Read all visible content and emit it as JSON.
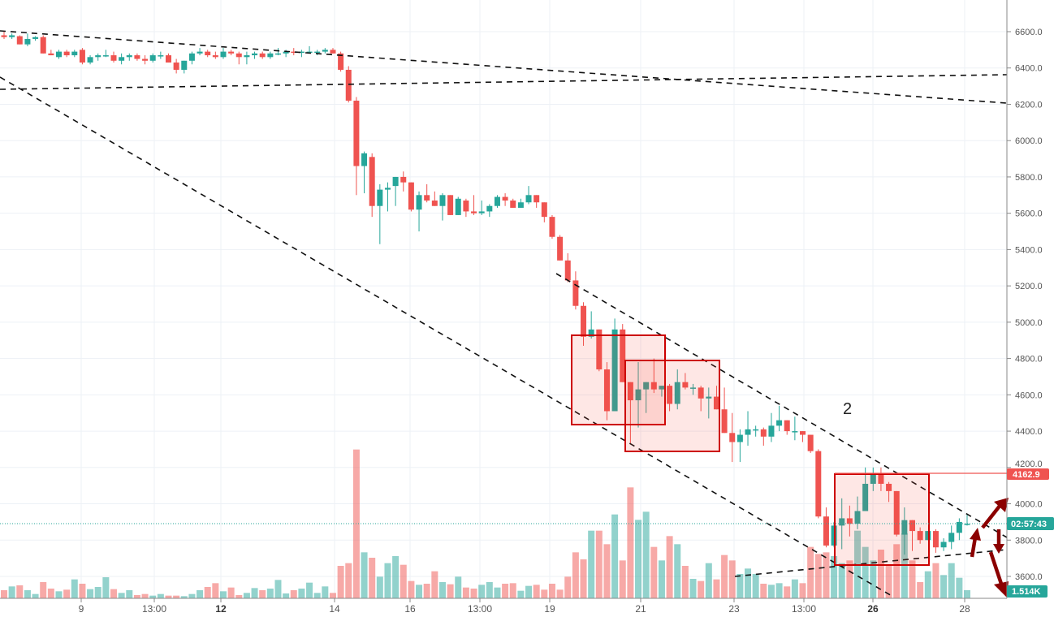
{
  "chart_data": {
    "type": "candlestick",
    "interval_note": "",
    "colors": {
      "up": "#26a69a",
      "down": "#ef5350",
      "drawing": "#b00000",
      "arrow": "#8b0000"
    },
    "y_axis": {
      "ticks": [
        6600,
        6400,
        6200,
        6000,
        5800,
        5600,
        5400,
        5200,
        5000,
        4800,
        4600,
        4400,
        4200,
        4000,
        3800,
        3600
      ],
      "tick_labels": [
        "6600.0",
        "6400.0",
        "6200.0",
        "6000.0",
        "5800.0",
        "5600.0",
        "5400.0",
        "5200.0",
        "5000.0",
        "4800.0",
        "4600.0",
        "4400.0",
        "4200.0",
        "4000.0",
        "3800.0",
        "3600.0"
      ],
      "range": [
        3479,
        6774
      ]
    },
    "x_axis": {
      "tick_labels": [
        "9",
        "13:00",
        "12",
        "14",
        "16",
        "13:00",
        "19",
        "21",
        "23",
        "13:00",
        "26",
        "28"
      ],
      "bold": [
        false,
        false,
        true,
        false,
        false,
        false,
        false,
        false,
        false,
        false,
        true,
        false
      ]
    },
    "grid": true,
    "ohlc": [
      [
        6580,
        6600,
        6560,
        6570
      ],
      [
        6570,
        6590,
        6560,
        6580
      ],
      [
        6575,
        6580,
        6530,
        6530
      ],
      [
        6530,
        6590,
        6520,
        6560
      ],
      [
        6560,
        6575,
        6550,
        6570
      ],
      [
        6570,
        6580,
        6480,
        6480
      ],
      [
        6480,
        6500,
        6470,
        6470
      ],
      [
        6460,
        6500,
        6450,
        6490
      ],
      [
        6490,
        6500,
        6460,
        6470
      ],
      [
        6470,
        6500,
        6460,
        6490
      ],
      [
        6500,
        6510,
        6420,
        6430
      ],
      [
        6430,
        6470,
        6420,
        6460
      ],
      [
        6460,
        6480,
        6440,
        6470
      ],
      [
        6470,
        6500,
        6460,
        6470
      ],
      [
        6470,
        6490,
        6430,
        6440
      ],
      [
        6440,
        6480,
        6420,
        6460
      ],
      [
        6460,
        6480,
        6440,
        6470
      ],
      [
        6470,
        6480,
        6440,
        6450
      ],
      [
        6450,
        6470,
        6420,
        6440
      ],
      [
        6440,
        6480,
        6430,
        6470
      ],
      [
        6470,
        6490,
        6450,
        6470
      ],
      [
        6470,
        6480,
        6430,
        6430
      ],
      [
        6430,
        6450,
        6370,
        6390
      ],
      [
        6390,
        6440,
        6370,
        6440
      ],
      [
        6440,
        6490,
        6420,
        6480
      ],
      [
        6480,
        6510,
        6470,
        6490
      ],
      [
        6490,
        6500,
        6460,
        6470
      ],
      [
        6470,
        6490,
        6450,
        6460
      ],
      [
        6460,
        6510,
        6450,
        6490
      ],
      [
        6490,
        6500,
        6470,
        6480
      ],
      [
        6480,
        6490,
        6420,
        6460
      ],
      [
        6460,
        6490,
        6420,
        6470
      ],
      [
        6470,
        6490,
        6450,
        6480
      ],
      [
        6480,
        6490,
        6450,
        6460
      ],
      [
        6460,
        6490,
        6450,
        6480
      ],
      [
        6480,
        6510,
        6470,
        6480
      ],
      [
        6480,
        6500,
        6460,
        6490
      ],
      [
        6490,
        6510,
        6470,
        6485
      ],
      [
        6485,
        6500,
        6460,
        6490
      ],
      [
        6490,
        6520,
        6480,
        6490
      ],
      [
        6490,
        6500,
        6470,
        6490
      ],
      [
        6490,
        6510,
        6480,
        6500
      ],
      [
        6500,
        6510,
        6480,
        6480
      ],
      [
        6480,
        6490,
        6380,
        6390
      ],
      [
        6390,
        6410,
        6210,
        6220
      ],
      [
        6220,
        6240,
        5700,
        5860
      ],
      [
        5860,
        5940,
        5710,
        5930
      ],
      [
        5910,
        5930,
        5580,
        5640
      ],
      [
        5640,
        5760,
        5430,
        5730
      ],
      [
        5730,
        5770,
        5610,
        5740
      ],
      [
        5750,
        5800,
        5640,
        5800
      ],
      [
        5800,
        5830,
        5720,
        5770
      ],
      [
        5770,
        5770,
        5610,
        5620
      ],
      [
        5620,
        5720,
        5500,
        5700
      ],
      [
        5700,
        5760,
        5660,
        5670
      ],
      [
        5670,
        5720,
        5640,
        5640
      ],
      [
        5640,
        5710,
        5560,
        5700
      ],
      [
        5700,
        5700,
        5590,
        5590
      ],
      [
        5590,
        5690,
        5590,
        5680
      ],
      [
        5670,
        5680,
        5580,
        5610
      ],
      [
        5610,
        5700,
        5590,
        5600
      ],
      [
        5600,
        5670,
        5590,
        5610
      ],
      [
        5610,
        5650,
        5580,
        5640
      ],
      [
        5640,
        5700,
        5630,
        5690
      ],
      [
        5690,
        5710,
        5640,
        5670
      ],
      [
        5670,
        5680,
        5630,
        5630
      ],
      [
        5630,
        5680,
        5630,
        5660
      ],
      [
        5660,
        5750,
        5650,
        5700
      ],
      [
        5700,
        5700,
        5630,
        5660
      ],
      [
        5660,
        5660,
        5550,
        5580
      ],
      [
        5580,
        5590,
        5460,
        5470
      ],
      [
        5470,
        5480,
        5340,
        5340
      ],
      [
        5340,
        5380,
        5220,
        5230
      ],
      [
        5230,
        5280,
        5070,
        5090
      ],
      [
        5090,
        5110,
        4870,
        4920
      ],
      [
        4920,
        5060,
        4910,
        4960
      ],
      [
        4960,
        4960,
        4730,
        4740
      ],
      [
        4740,
        4780,
        4460,
        4510
      ],
      [
        4510,
        5020,
        4510,
        4960
      ],
      [
        4960,
        4990,
        4670,
        4670
      ],
      [
        4670,
        4670,
        4330,
        4570
      ],
      [
        4570,
        4780,
        4420,
        4630
      ],
      [
        4630,
        4670,
        4500,
        4670
      ],
      [
        4670,
        4800,
        4610,
        4630
      ],
      [
        4630,
        4650,
        4590,
        4650
      ],
      [
        4650,
        4660,
        4510,
        4550
      ],
      [
        4550,
        4740,
        4520,
        4670
      ],
      [
        4670,
        4720,
        4630,
        4640
      ],
      [
        4640,
        4660,
        4600,
        4640
      ],
      [
        4640,
        4650,
        4510,
        4580
      ],
      [
        4580,
        4640,
        4470,
        4590
      ],
      [
        4590,
        4650,
        4520,
        4520
      ],
      [
        4520,
        4640,
        4390,
        4390
      ],
      [
        4390,
        4500,
        4230,
        4340
      ],
      [
        4340,
        4410,
        4230,
        4380
      ],
      [
        4380,
        4510,
        4320,
        4410
      ],
      [
        4410,
        4430,
        4370,
        4410
      ],
      [
        4410,
        4420,
        4320,
        4370
      ],
      [
        4370,
        4500,
        4340,
        4430
      ],
      [
        4430,
        4540,
        4400,
        4460
      ],
      [
        4460,
        4460,
        4380,
        4400
      ],
      [
        4400,
        4480,
        4350,
        4400
      ],
      [
        4400,
        4400,
        4340,
        4380
      ],
      [
        4380,
        4380,
        4280,
        4290
      ],
      [
        4290,
        4300,
        3920,
        3930
      ],
      [
        3930,
        3980,
        3760,
        3770
      ],
      [
        3770,
        3900,
        3760,
        3880
      ],
      [
        3880,
        4030,
        3750,
        3920
      ],
      [
        3920,
        3990,
        3820,
        3890
      ],
      [
        3890,
        4040,
        3860,
        3960
      ],
      [
        3960,
        4200,
        3960,
        4110
      ],
      [
        4110,
        4200,
        4070,
        4160
      ],
      [
        4160,
        4200,
        4070,
        4110
      ],
      [
        4110,
        4120,
        4010,
        4070
      ],
      [
        4070,
        4070,
        3820,
        3830
      ],
      [
        3830,
        3980,
        3720,
        3910
      ],
      [
        3910,
        3910,
        3740,
        3850
      ],
      [
        3850,
        3870,
        3780,
        3800
      ],
      [
        3800,
        3850,
        3800,
        3850
      ],
      [
        3850,
        3860,
        3730,
        3760
      ],
      [
        3760,
        3810,
        3740,
        3790
      ],
      [
        3790,
        3880,
        3750,
        3840
      ],
      [
        3840,
        3920,
        3800,
        3900
      ],
      [
        3885,
        3940,
        3880,
        3890
      ]
    ],
    "volume_k": [
      1.5,
      2.2,
      2.4,
      1.5,
      0.8,
      3.0,
      1.8,
      1.3,
      1.6,
      3.5,
      2.7,
      1.7,
      2.1,
      3.9,
      1.7,
      1.0,
      1.5,
      0.6,
      0.8,
      0.5,
      0.8,
      0.5,
      0.5,
      0.4,
      0.8,
      1.5,
      2.1,
      2.8,
      1.3,
      2.0,
      0.6,
      1.0,
      1.9,
      1.5,
      1.8,
      3.4,
      0.9,
      1.5,
      1.8,
      2.9,
      1.0,
      2.2,
      1.0,
      6.0,
      6.5,
      27.5,
      8.5,
      7.5,
      4.0,
      6.5,
      7.8,
      6.2,
      3.2,
      2.5,
      2.7,
      5.0,
      3.0,
      2.6,
      4.0,
      2.0,
      1.8,
      2.5,
      3.0,
      2.0,
      2.7,
      2.8,
      1.4,
      2.3,
      2.5,
      1.6,
      2.7,
      1.6,
      4.0,
      8.5,
      7.2,
      12.5,
      12.5,
      10.0,
      15.5,
      7.0,
      20.5,
      14.5,
      16.0,
      9.5,
      7.0,
      11.5,
      10.0,
      6.0,
      3.6,
      3.2,
      6.5,
      3.5,
      8.0,
      7.0,
      4.5,
      5.5,
      4.5,
      2.7,
      2.5,
      2.8,
      2.2,
      3.5,
      2.8,
      9.5,
      8.2,
      8.5,
      7.8,
      6.5,
      7.0,
      12.5,
      9.5,
      7.0,
      9.0,
      6.0,
      10.0,
      12.0,
      7.0,
      3.0,
      5.0,
      6.5,
      4.3,
      6.5,
      3.8,
      1.514
    ],
    "price_line": {
      "value": 4162.9,
      "label": "4162.9"
    },
    "last_price": {
      "value": 3890,
      "countdown": "02:57:43"
    },
    "volume_label": "1.514K",
    "annotations": [
      {
        "text": "2"
      }
    ]
  }
}
